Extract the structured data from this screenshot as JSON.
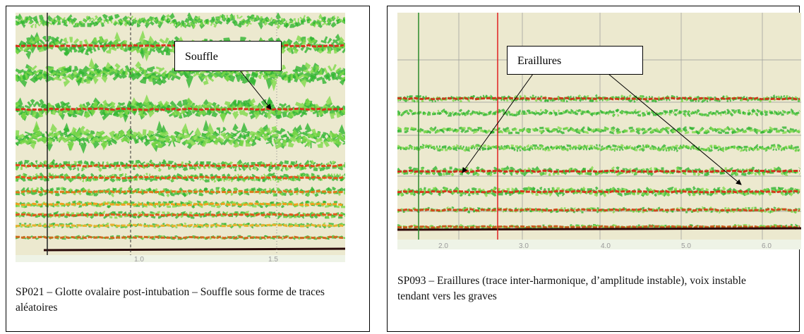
{
  "panels": [
    {
      "callout": "Souffle",
      "ticks": [
        "1.0",
        "1.5"
      ],
      "caption": "SP021 – Glotte ovalaire post-intubation – Souffle sous forme de traces aléatoires"
    },
    {
      "callout": "Eraillures",
      "ticks": [
        "2.0",
        "3.0",
        "4.0",
        "5.0",
        "6.0"
      ],
      "caption": "SP093 – Eraillures (trace inter-harmonique, d’amplitude instable), voix instable tendant vers les graves"
    }
  ]
}
